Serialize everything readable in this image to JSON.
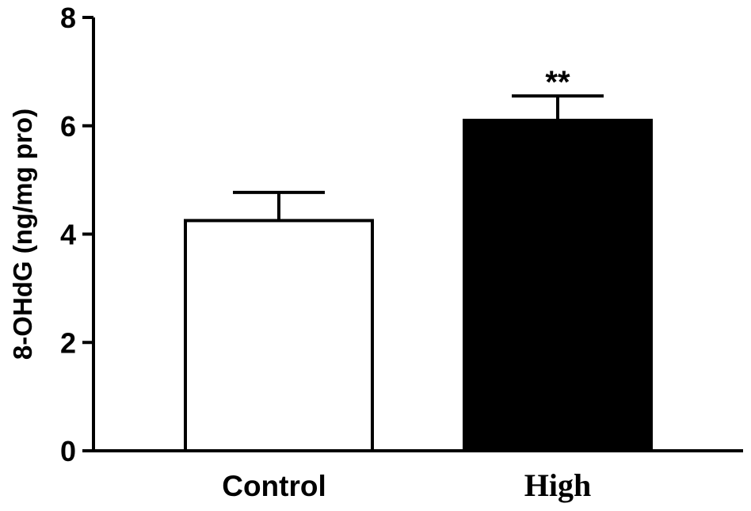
{
  "chart_data": {
    "type": "bar",
    "categories": [
      "Control",
      "High"
    ],
    "values": [
      4.25,
      6.1
    ],
    "errors": [
      0.52,
      0.45
    ],
    "annotations": [
      "",
      "**"
    ],
    "bar_fill": [
      "#ffffff",
      "#000000"
    ],
    "bar_stroke": "#000000",
    "title": "",
    "xlabel": "",
    "ylabel": "8-OHdG (ng/mg pro)",
    "ylim": [
      0,
      8
    ],
    "yticks": [
      "0",
      "2",
      "4",
      "6",
      "8"
    ],
    "grid": false
  }
}
